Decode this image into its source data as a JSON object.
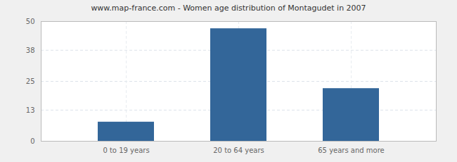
{
  "chart_data": {
    "type": "bar",
    "title": "www.map-france.com - Women age distribution of Montagudet in 2007",
    "categories": [
      "0 to 19 years",
      "20 to 64 years",
      "65 years and more"
    ],
    "values": [
      8,
      47,
      22
    ],
    "color": "#336699",
    "ylim": [
      0,
      50
    ],
    "yticks": [
      0,
      13,
      25,
      38,
      50
    ],
    "grid": true
  }
}
